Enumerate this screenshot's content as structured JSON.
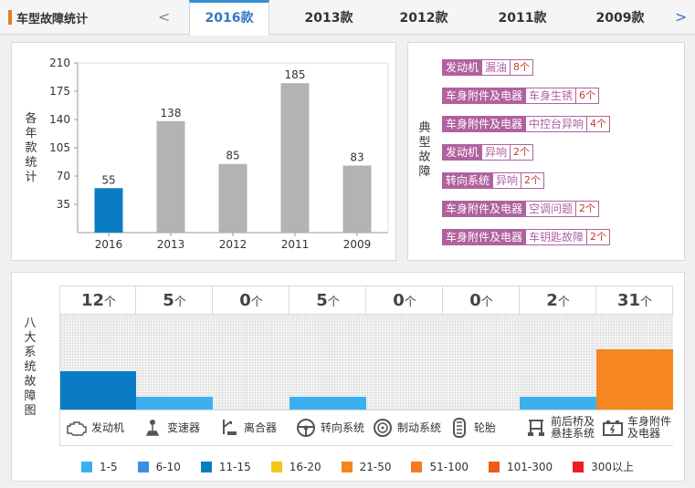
{
  "header": {
    "title": "车型故障统计",
    "prev_glyph": "<",
    "next_glyph": ">",
    "tabs": [
      {
        "label": "2016款",
        "active": true
      },
      {
        "label": "2013款",
        "active": false
      },
      {
        "label": "2012款",
        "active": false
      },
      {
        "label": "2011款",
        "active": false
      },
      {
        "label": "2009款",
        "active": false
      }
    ]
  },
  "chart_panel": {
    "side_label": [
      "各",
      "年",
      "款",
      "统",
      "计"
    ]
  },
  "chart_data": {
    "type": "bar",
    "categories": [
      "2016",
      "2013",
      "2012",
      "2011",
      "2009"
    ],
    "values": [
      55,
      138,
      85,
      185,
      83
    ],
    "yticks": [
      35,
      70,
      105,
      140,
      175,
      210
    ],
    "ylim": [
      0,
      210
    ],
    "highlight_color": "#0a7cc4",
    "bar_color": "#b3b3b3"
  },
  "typical_panel": {
    "side_label": [
      "典",
      "型",
      "故",
      "障"
    ],
    "faults": [
      {
        "category": "发动机",
        "issue": "漏油",
        "count": "8个"
      },
      {
        "category": "车身附件及电器",
        "issue": "车身生锈",
        "count": "6个"
      },
      {
        "category": "车身附件及电器",
        "issue": "中控台异响",
        "count": "4个"
      },
      {
        "category": "发动机",
        "issue": "异响",
        "count": "2个"
      },
      {
        "category": "转向系统",
        "issue": "异响",
        "count": "2个"
      },
      {
        "category": "车身附件及电器",
        "issue": "空调问题",
        "count": "2个"
      },
      {
        "category": "车身附件及电器",
        "issue": "车钥匙故障",
        "count": "2个"
      }
    ]
  },
  "systems_panel": {
    "side_label": [
      "八",
      "大",
      "系",
      "统",
      "故",
      "障",
      "图"
    ],
    "unit": "个",
    "systems": [
      {
        "name": "发动机",
        "count": "12",
        "level": 0.4,
        "color": "#0a7cc4",
        "icon": "engine-icon"
      },
      {
        "name": "变速器",
        "count": "5",
        "level": 0.13,
        "color": "#3ab1ee",
        "icon": "gear-shift-icon"
      },
      {
        "name": "离合器",
        "count": "0",
        "level": 0,
        "color": "#3ab1ee",
        "icon": "clutch-pedal-icon"
      },
      {
        "name": "转向系统",
        "count": "5",
        "level": 0.13,
        "color": "#3ab1ee",
        "icon": "steering-wheel-icon"
      },
      {
        "name": "制动系统",
        "count": "0",
        "level": 0,
        "color": "#3ab1ee",
        "icon": "brake-disc-icon"
      },
      {
        "name": "轮胎",
        "count": "0",
        "level": 0,
        "color": "#3ab1ee",
        "icon": "tire-icon"
      },
      {
        "name": "前后桥及\n悬挂系统",
        "count": "2",
        "level": 0.13,
        "color": "#3ab1ee",
        "icon": "suspension-icon"
      },
      {
        "name": "车身附件\n及电器",
        "count": "31",
        "level": 0.63,
        "color": "#f6861f",
        "icon": "battery-icon"
      }
    ],
    "legend": [
      {
        "label": "1-5",
        "color": "#3ab1ee"
      },
      {
        "label": "6-10",
        "color": "#3a8fe6"
      },
      {
        "label": "11-15",
        "color": "#0a7cc4"
      },
      {
        "label": "16-20",
        "color": "#f5c518"
      },
      {
        "label": "21-50",
        "color": "#f6861f"
      },
      {
        "label": "51-100",
        "color": "#f57a20"
      },
      {
        "label": "101-300",
        "color": "#f05a1a"
      },
      {
        "label": "300以上",
        "color": "#ee1c25"
      }
    ]
  }
}
